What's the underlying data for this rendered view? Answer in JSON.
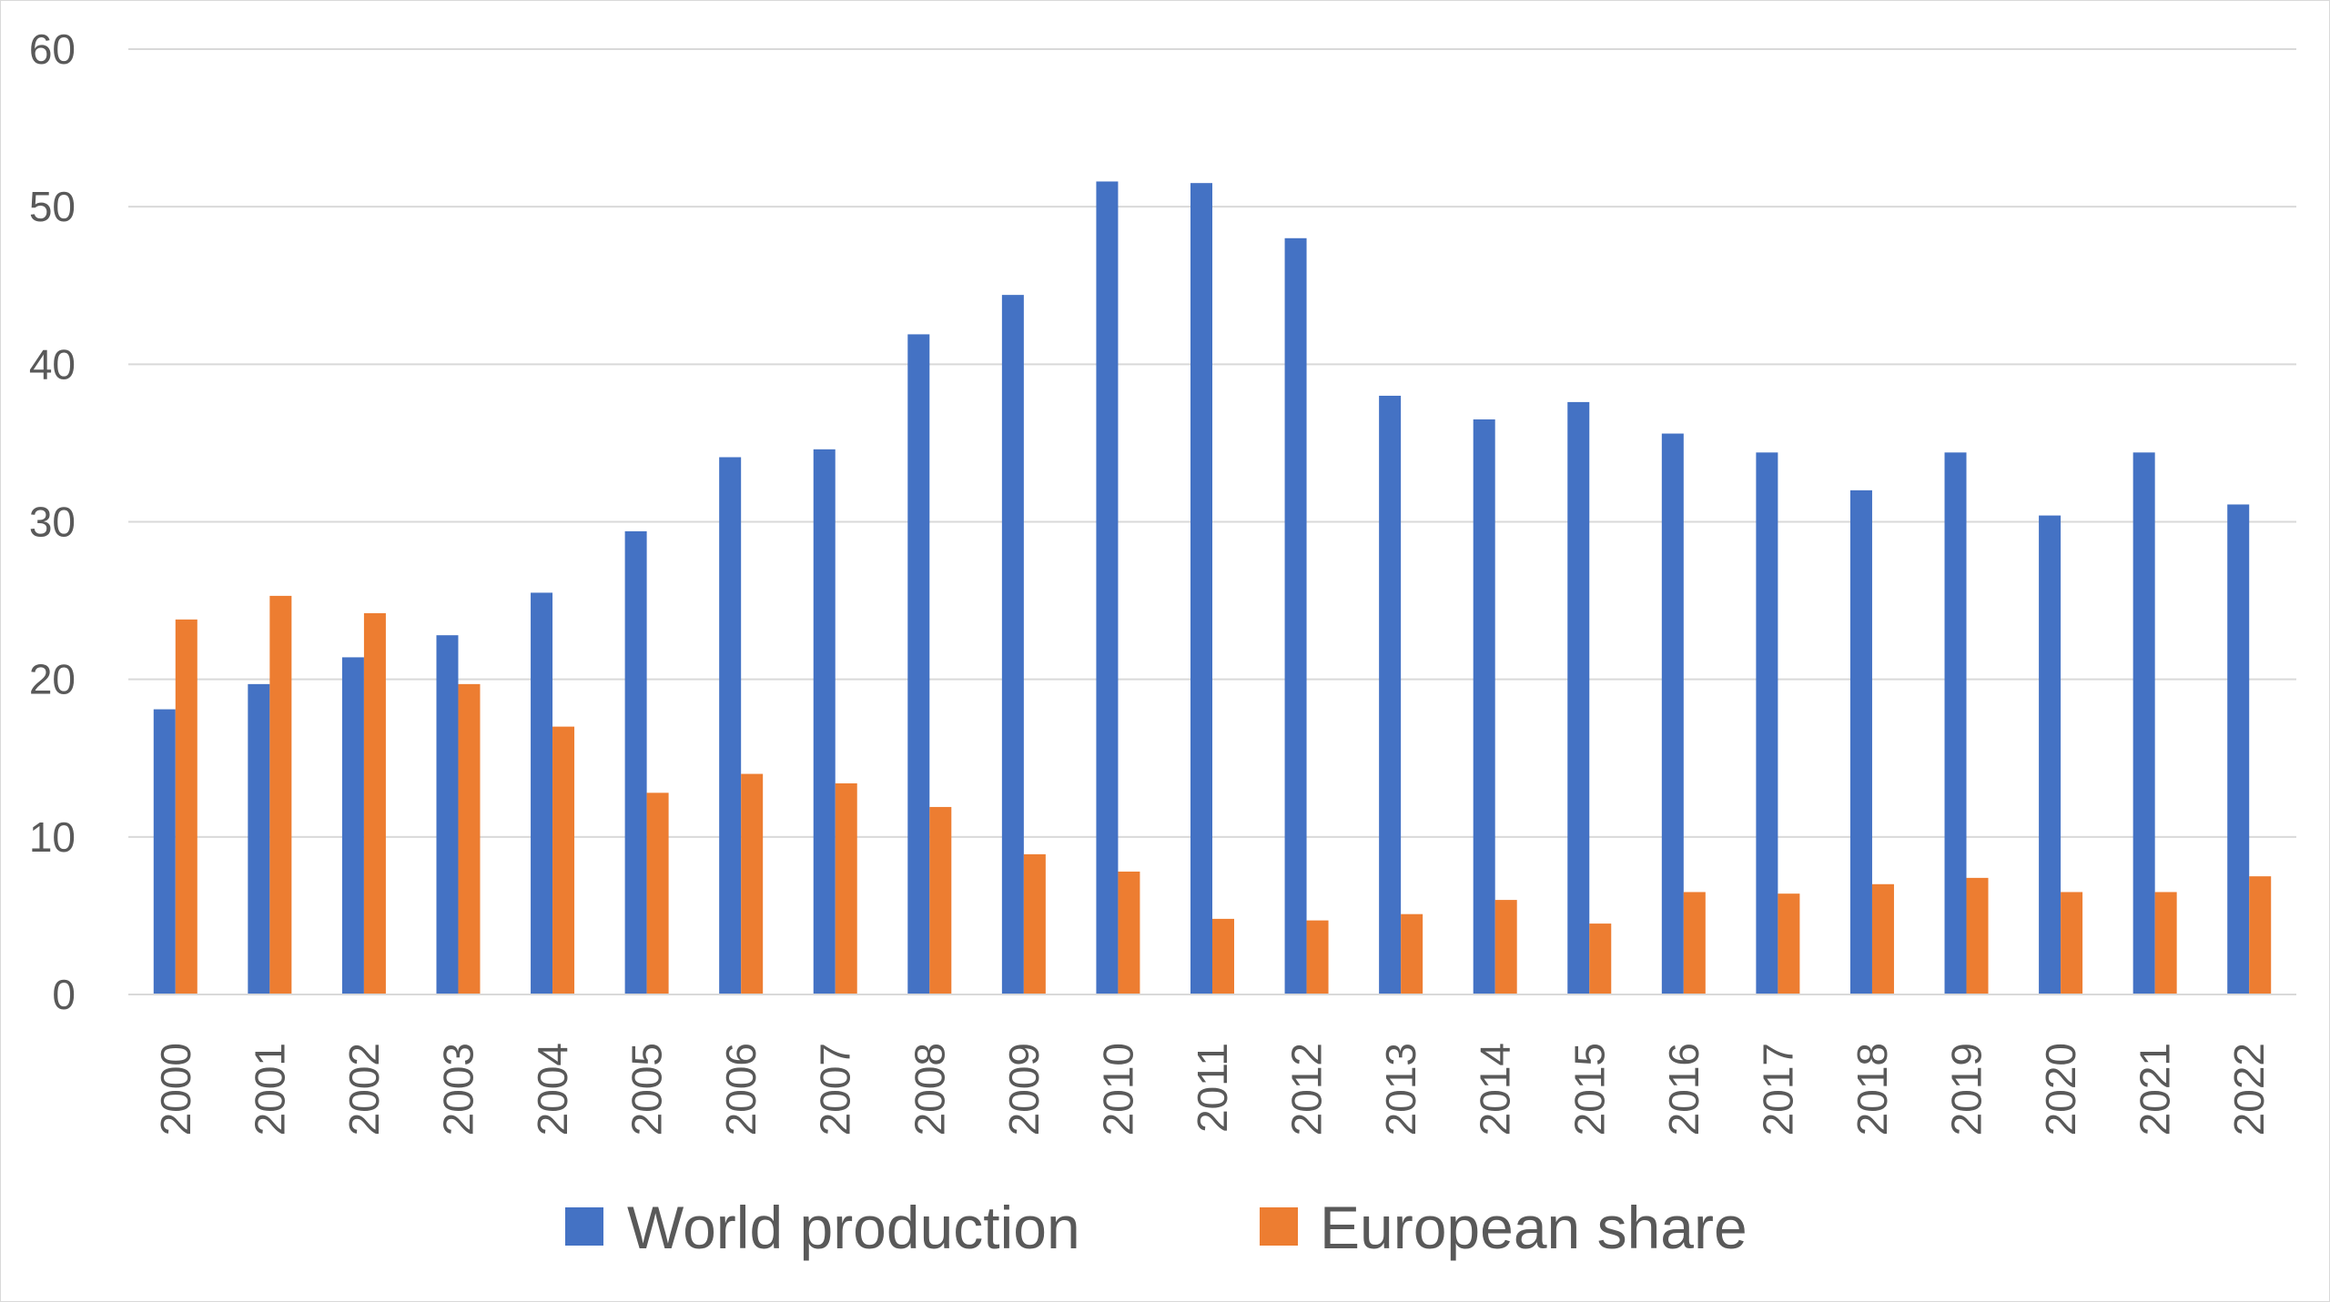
{
  "chart_data": {
    "type": "bar",
    "title": "",
    "xlabel": "",
    "ylabel": "",
    "ylim": [
      0,
      60
    ],
    "yticks": [
      0,
      10,
      20,
      30,
      40,
      50,
      60
    ],
    "grid": true,
    "legend": "bottom-center",
    "categories": [
      "2000",
      "2001",
      "2002",
      "2003",
      "2004",
      "2005",
      "2006",
      "2007",
      "2008",
      "2009",
      "2010",
      "2011",
      "2012",
      "2013",
      "2014",
      "2015",
      "2016",
      "2017",
      "2018",
      "2019",
      "2020",
      "2021",
      "2022"
    ],
    "series": [
      {
        "name": "World production",
        "color": "#4472C4",
        "values": [
          18.1,
          19.7,
          21.4,
          22.8,
          25.5,
          29.4,
          34.1,
          34.6,
          41.9,
          44.4,
          51.6,
          51.5,
          48.0,
          38.0,
          36.5,
          37.6,
          35.6,
          34.4,
          32.0,
          34.4,
          30.4,
          34.4,
          31.1
        ]
      },
      {
        "name": "European share",
        "color": "#ED7D31",
        "values": [
          23.8,
          25.3,
          24.2,
          19.7,
          17.0,
          12.8,
          14.0,
          13.4,
          11.9,
          8.9,
          7.8,
          4.8,
          4.7,
          5.1,
          6.0,
          4.5,
          6.5,
          6.4,
          7.0,
          7.4,
          6.5,
          6.5,
          7.5
        ]
      }
    ]
  }
}
